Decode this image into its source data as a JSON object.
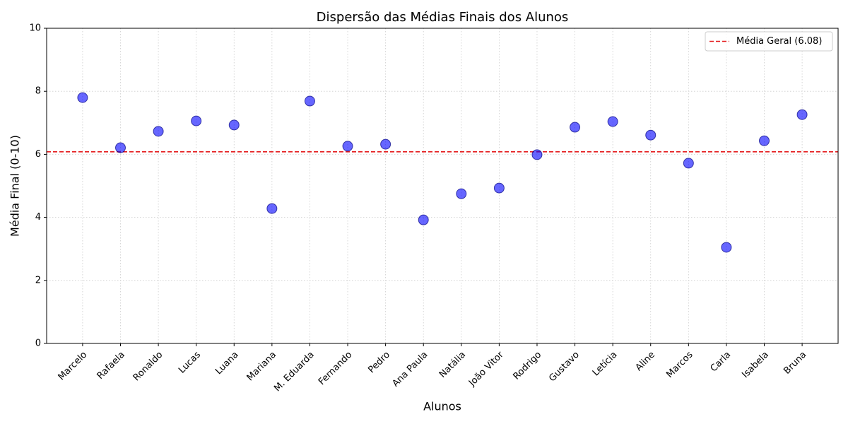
{
  "chart_data": {
    "type": "scatter",
    "title": "Dispersão das Médias Finais dos Alunos",
    "x_label": "Alunos",
    "y_label": "Média Final (0-10)",
    "categories": [
      "Marcelo",
      "Rafaela",
      "Ronaldo",
      "Lucas",
      "Luana",
      "Mariana",
      "M. Eduarda",
      "Fernando",
      "Pedro",
      "Ana Paula",
      "Natália",
      "João Vitor",
      "Rodrigo",
      "Gustavo",
      "Letícia",
      "Aline",
      "Marcos",
      "Carla",
      "Isabela",
      "Bruna"
    ],
    "values": [
      7.8,
      6.21,
      6.73,
      7.06,
      6.93,
      4.28,
      7.69,
      6.26,
      6.32,
      3.92,
      4.75,
      4.93,
      5.99,
      6.86,
      7.04,
      6.61,
      5.72,
      3.05,
      6.43,
      7.26
    ],
    "color": "#0000ff",
    "alpha": 0.6,
    "edgecolor": "#000080",
    "mean_line": {
      "value": 6.08,
      "label": "Média Geral (6.08)",
      "color": "#e41a1c"
    },
    "ylim": [
      0,
      10
    ],
    "yticks": [
      0,
      2,
      4,
      6,
      8,
      10
    ],
    "grid": true,
    "legend_position": "upper-right"
  }
}
